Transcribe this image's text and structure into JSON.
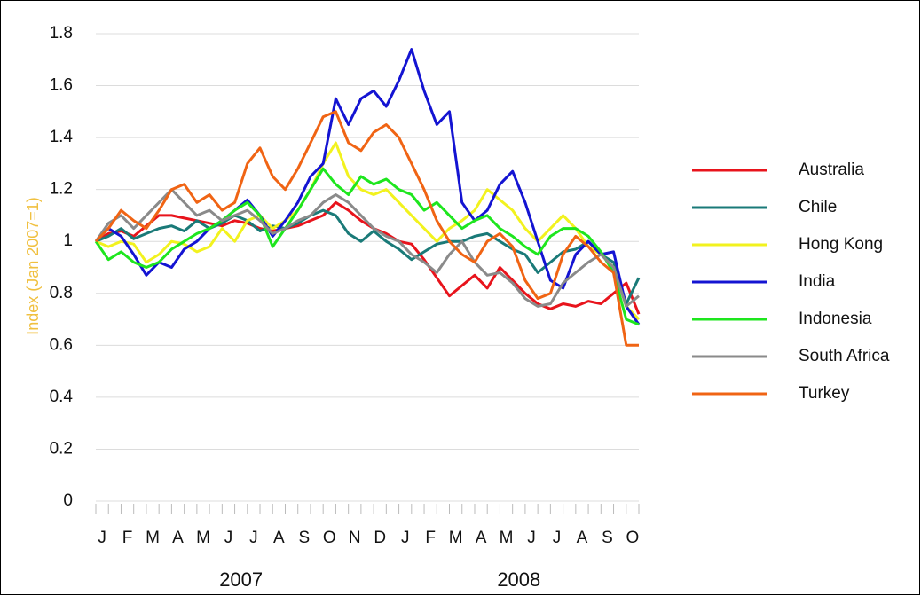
{
  "chart_data": {
    "type": "line",
    "y_label": "Index (Jan 2007=1)",
    "categories": [
      "J",
      null,
      "F",
      null,
      "M",
      null,
      "A",
      null,
      "M",
      null,
      "J",
      null,
      "J",
      null,
      "A",
      null,
      "S",
      null,
      "O",
      null,
      "N",
      null,
      "D",
      null,
      "J",
      null,
      "F",
      null,
      "M",
      null,
      "A",
      null,
      "M",
      null,
      "J",
      null,
      "J",
      null,
      "A",
      null,
      "S",
      null,
      "O",
      null
    ],
    "x_group_labels": [
      "2007",
      "2008"
    ],
    "ylim": [
      0,
      1.8
    ],
    "yticks": [
      0,
      0.2,
      0.4,
      0.6,
      0.8,
      1,
      1.2,
      1.4,
      1.6,
      1.8
    ],
    "grid": true,
    "legend": "right",
    "series": [
      {
        "name": "Australia",
        "color": "#e8141c",
        "values": [
          1.0,
          1.03,
          1.04,
          1.02,
          1.06,
          1.1,
          1.1,
          1.09,
          1.08,
          1.07,
          1.06,
          1.08,
          1.07,
          1.05,
          1.04,
          1.05,
          1.06,
          1.08,
          1.1,
          1.15,
          1.12,
          1.08,
          1.05,
          1.03,
          1.0,
          0.99,
          0.93,
          0.86,
          0.79,
          0.83,
          0.87,
          0.82,
          0.9,
          0.85,
          0.8,
          0.76,
          0.74,
          0.76,
          0.75,
          0.77,
          0.76,
          0.8,
          0.84,
          0.72
        ]
      },
      {
        "name": "Chile",
        "color": "#1a7a78",
        "values": [
          1.0,
          1.02,
          1.05,
          1.01,
          1.03,
          1.05,
          1.06,
          1.04,
          1.08,
          1.05,
          1.07,
          1.1,
          1.08,
          1.04,
          1.06,
          1.05,
          1.07,
          1.1,
          1.12,
          1.1,
          1.03,
          1.0,
          1.04,
          1.0,
          0.97,
          0.93,
          0.96,
          0.99,
          1.0,
          1.0,
          1.02,
          1.03,
          1.0,
          0.97,
          0.95,
          0.88,
          0.92,
          0.96,
          0.97,
          1.0,
          0.95,
          0.92,
          0.76,
          0.86
        ]
      },
      {
        "name": "Hong Kong",
        "color": "#f2f21e",
        "values": [
          1.0,
          0.98,
          1.0,
          0.99,
          0.92,
          0.95,
          1.0,
          0.99,
          0.96,
          0.98,
          1.05,
          1.0,
          1.08,
          1.1,
          1.05,
          1.08,
          1.12,
          1.2,
          1.3,
          1.38,
          1.25,
          1.2,
          1.18,
          1.2,
          1.15,
          1.1,
          1.05,
          1.0,
          1.05,
          1.08,
          1.12,
          1.2,
          1.16,
          1.12,
          1.05,
          1.0,
          1.05,
          1.1,
          1.05,
          0.98,
          0.95,
          0.9,
          0.75,
          0.7
        ]
      },
      {
        "name": "India",
        "color": "#1414d2",
        "values": [
          1.0,
          1.05,
          1.02,
          0.95,
          0.87,
          0.92,
          0.9,
          0.97,
          1.0,
          1.05,
          1.08,
          1.12,
          1.16,
          1.1,
          1.02,
          1.08,
          1.15,
          1.25,
          1.3,
          1.55,
          1.45,
          1.55,
          1.58,
          1.52,
          1.62,
          1.74,
          1.58,
          1.45,
          1.5,
          1.15,
          1.08,
          1.12,
          1.22,
          1.27,
          1.15,
          1.0,
          0.85,
          0.82,
          0.95,
          1.0,
          0.95,
          0.96,
          0.75,
          0.68
        ]
      },
      {
        "name": "Indonesia",
        "color": "#1ee61e",
        "values": [
          1.0,
          0.93,
          0.96,
          0.92,
          0.9,
          0.92,
          0.97,
          1.0,
          1.03,
          1.05,
          1.08,
          1.12,
          1.15,
          1.1,
          0.98,
          1.05,
          1.12,
          1.2,
          1.28,
          1.22,
          1.18,
          1.25,
          1.22,
          1.24,
          1.2,
          1.18,
          1.12,
          1.15,
          1.1,
          1.05,
          1.08,
          1.1,
          1.05,
          1.02,
          0.98,
          0.95,
          1.02,
          1.05,
          1.05,
          1.02,
          0.96,
          0.88,
          0.7,
          0.68
        ]
      },
      {
        "name": "South Africa",
        "color": "#8a8a8a",
        "values": [
          1.0,
          1.07,
          1.1,
          1.05,
          1.1,
          1.15,
          1.2,
          1.15,
          1.1,
          1.12,
          1.08,
          1.1,
          1.12,
          1.08,
          1.03,
          1.05,
          1.08,
          1.1,
          1.15,
          1.18,
          1.15,
          1.1,
          1.05,
          1.02,
          1.0,
          0.95,
          0.92,
          0.88,
          0.95,
          1.0,
          0.92,
          0.87,
          0.88,
          0.84,
          0.78,
          0.75,
          0.76,
          0.84,
          0.88,
          0.92,
          0.95,
          0.9,
          0.75,
          0.79
        ]
      },
      {
        "name": "Turkey",
        "color": "#f06414",
        "values": [
          1.0,
          1.05,
          1.12,
          1.08,
          1.05,
          1.12,
          1.2,
          1.22,
          1.15,
          1.18,
          1.12,
          1.15,
          1.3,
          1.36,
          1.25,
          1.2,
          1.28,
          1.38,
          1.48,
          1.5,
          1.38,
          1.35,
          1.42,
          1.45,
          1.4,
          1.3,
          1.2,
          1.08,
          1.0,
          0.95,
          0.92,
          1.0,
          1.03,
          0.98,
          0.85,
          0.78,
          0.8,
          0.95,
          1.02,
          0.98,
          0.92,
          0.88,
          0.6,
          0.6
        ]
      }
    ]
  }
}
